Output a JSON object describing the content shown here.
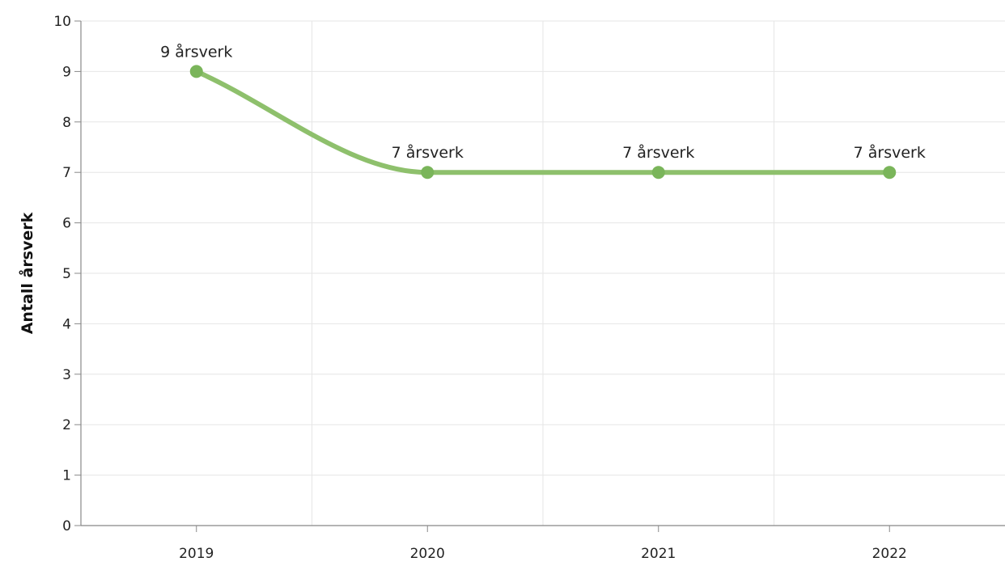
{
  "chart_data": {
    "type": "line",
    "categories": [
      "2019",
      "2020",
      "2021",
      "2022"
    ],
    "series": [
      {
        "values": [
          9,
          7,
          7,
          7
        ],
        "data_labels": [
          "9 årsverk",
          "7 årsverk",
          "7 årsverk",
          "7 årsverk"
        ],
        "color": "#8ec06c",
        "marker_color": "#7ab55a"
      }
    ],
    "ylabel": "Antall årsverk",
    "xlabel": "",
    "ylim": [
      0,
      10
    ],
    "yticks": [
      "0",
      "1",
      "2",
      "3",
      "4",
      "5",
      "6",
      "7",
      "8",
      "9",
      "10"
    ],
    "grid": true,
    "smooth": true,
    "legend": "none"
  }
}
